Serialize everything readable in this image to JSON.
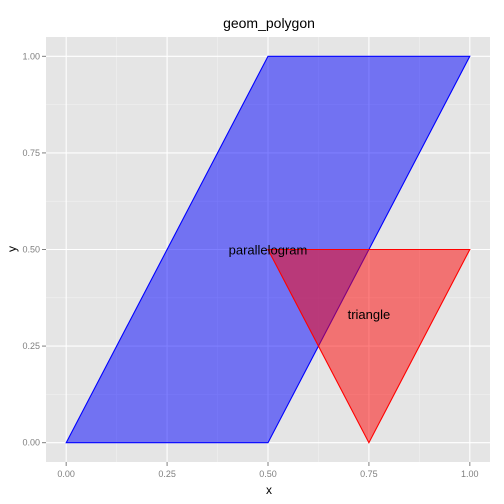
{
  "chart_data": {
    "type": "polygon",
    "title": "geom_polygon",
    "xlabel": "x",
    "ylabel": "y",
    "xlim": [
      -0.05,
      1.05
    ],
    "ylim": [
      -0.05,
      1.05
    ],
    "x_ticks": [
      0.0,
      0.25,
      0.5,
      0.75,
      1.0
    ],
    "x_tick_labels": [
      "0.00",
      "0.25",
      "0.50",
      "0.75",
      "1.00"
    ],
    "y_ticks": [
      0.0,
      0.25,
      0.5,
      0.75,
      1.0
    ],
    "y_tick_labels": [
      "0.00",
      "0.25",
      "0.50",
      "0.75",
      "1.00"
    ],
    "grid": true,
    "polygons": [
      {
        "label": "parallelogram",
        "points": [
          [
            0,
            0
          ],
          [
            0.5,
            1
          ],
          [
            1,
            1
          ],
          [
            0.5,
            0
          ]
        ],
        "fill": "#0000ff",
        "fill_opacity": 0.5,
        "stroke": "#0000ff",
        "label_position": [
          0.5,
          0.5
        ]
      },
      {
        "label": "triangle",
        "points": [
          [
            0.5,
            0.5
          ],
          [
            1,
            0.5
          ],
          [
            0.75,
            0
          ]
        ],
        "fill": "#ff0000",
        "fill_opacity": 0.5,
        "stroke": "#ff0000",
        "label_position": [
          0.75,
          0.333
        ]
      }
    ],
    "colors": {
      "panel_background": "#e5e5e5",
      "grid_major": "#ffffff",
      "grid_minor": "#f2f2f2"
    }
  }
}
